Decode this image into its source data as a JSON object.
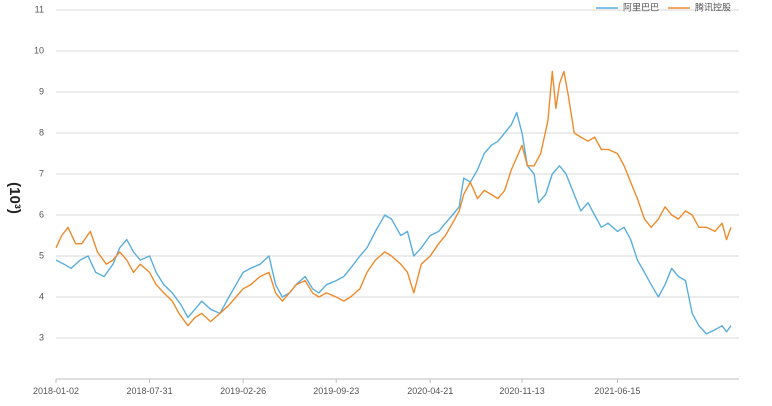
{
  "chart_data": {
    "type": "line",
    "ylabel": "(10³)",
    "ylim": [
      2,
      11
    ],
    "yticks": [
      3,
      4,
      5,
      6,
      7,
      8,
      9,
      10,
      11
    ],
    "xlim": [
      "2018-01-02",
      "2022-03-15"
    ],
    "xticks": [
      "2018-01-02",
      "2018-07-31",
      "2019-02-26",
      "2019-09-23",
      "2020-04-21",
      "2020-11-13",
      "2021-06-15"
    ],
    "grid": "horizontal",
    "legend": "top-right",
    "series": [
      {
        "name": "阿里巴巴",
        "color": "#5aaee0",
        "points": [
          [
            "2018-01-02",
            4.9
          ],
          [
            "2018-01-20",
            4.8
          ],
          [
            "2018-02-05",
            4.7
          ],
          [
            "2018-02-25",
            4.9
          ],
          [
            "2018-03-15",
            5.0
          ],
          [
            "2018-04-01",
            4.6
          ],
          [
            "2018-04-20",
            4.5
          ],
          [
            "2018-05-10",
            4.8
          ],
          [
            "2018-05-25",
            5.2
          ],
          [
            "2018-06-10",
            5.4
          ],
          [
            "2018-06-25",
            5.1
          ],
          [
            "2018-07-10",
            4.9
          ],
          [
            "2018-07-31",
            5.0
          ],
          [
            "2018-08-15",
            4.6
          ],
          [
            "2018-09-01",
            4.3
          ],
          [
            "2018-09-20",
            4.1
          ],
          [
            "2018-10-10",
            3.8
          ],
          [
            "2018-10-25",
            3.5
          ],
          [
            "2018-11-10",
            3.7
          ],
          [
            "2018-11-25",
            3.9
          ],
          [
            "2018-12-15",
            3.7
          ],
          [
            "2019-01-05",
            3.6
          ],
          [
            "2019-01-25",
            4.0
          ],
          [
            "2019-02-10",
            4.3
          ],
          [
            "2019-02-26",
            4.6
          ],
          [
            "2019-03-15",
            4.7
          ],
          [
            "2019-04-05",
            4.8
          ],
          [
            "2019-04-25",
            5.0
          ],
          [
            "2019-05-10",
            4.3
          ],
          [
            "2019-05-25",
            4.0
          ],
          [
            "2019-06-10",
            4.1
          ],
          [
            "2019-06-25",
            4.3
          ],
          [
            "2019-07-15",
            4.5
          ],
          [
            "2019-08-01",
            4.2
          ],
          [
            "2019-08-15",
            4.1
          ],
          [
            "2019-09-01",
            4.3
          ],
          [
            "2019-09-23",
            4.4
          ],
          [
            "2019-10-10",
            4.5
          ],
          [
            "2019-10-25",
            4.7
          ],
          [
            "2019-11-15",
            5.0
          ],
          [
            "2019-12-01",
            5.2
          ],
          [
            "2019-12-20",
            5.6
          ],
          [
            "2020-01-10",
            6.0
          ],
          [
            "2020-01-25",
            5.9
          ],
          [
            "2020-02-15",
            5.5
          ],
          [
            "2020-03-01",
            5.6
          ],
          [
            "2020-03-15",
            5.0
          ],
          [
            "2020-04-01",
            5.2
          ],
          [
            "2020-04-21",
            5.5
          ],
          [
            "2020-05-10",
            5.6
          ],
          [
            "2020-05-25",
            5.8
          ],
          [
            "2020-06-10",
            6.0
          ],
          [
            "2020-06-25",
            6.2
          ],
          [
            "2020-07-05",
            6.9
          ],
          [
            "2020-07-20",
            6.8
          ],
          [
            "2020-08-05",
            7.1
          ],
          [
            "2020-08-20",
            7.5
          ],
          [
            "2020-09-05",
            7.7
          ],
          [
            "2020-09-20",
            7.8
          ],
          [
            "2020-10-05",
            8.0
          ],
          [
            "2020-10-20",
            8.2
          ],
          [
            "2020-11-01",
            8.5
          ],
          [
            "2020-11-13",
            8.0
          ],
          [
            "2020-11-25",
            7.2
          ],
          [
            "2020-12-10",
            7.0
          ],
          [
            "2020-12-20",
            6.3
          ],
          [
            "2021-01-05",
            6.5
          ],
          [
            "2021-01-20",
            7.0
          ],
          [
            "2021-02-05",
            7.2
          ],
          [
            "2021-02-20",
            7.0
          ],
          [
            "2021-03-10",
            6.5
          ],
          [
            "2021-03-25",
            6.1
          ],
          [
            "2021-04-10",
            6.3
          ],
          [
            "2021-04-25",
            6.0
          ],
          [
            "2021-05-10",
            5.7
          ],
          [
            "2021-05-25",
            5.8
          ],
          [
            "2021-06-15",
            5.6
          ],
          [
            "2021-06-30",
            5.7
          ],
          [
            "2021-07-15",
            5.4
          ],
          [
            "2021-07-30",
            4.9
          ],
          [
            "2021-08-15",
            4.6
          ],
          [
            "2021-08-30",
            4.3
          ],
          [
            "2021-09-15",
            4.0
          ],
          [
            "2021-09-30",
            4.3
          ],
          [
            "2021-10-15",
            4.7
          ],
          [
            "2021-10-30",
            4.5
          ],
          [
            "2021-11-15",
            4.4
          ],
          [
            "2021-11-30",
            3.6
          ],
          [
            "2021-12-15",
            3.3
          ],
          [
            "2022-01-01",
            3.1
          ],
          [
            "2022-01-20",
            3.2
          ],
          [
            "2022-02-05",
            3.3
          ],
          [
            "2022-02-15",
            3.15
          ],
          [
            "2022-02-25",
            3.3
          ]
        ]
      },
      {
        "name": "腾讯控股",
        "color": "#ef8b2c",
        "points": [
          [
            "2018-01-02",
            5.2
          ],
          [
            "2018-01-15",
            5.5
          ],
          [
            "2018-01-29",
            5.7
          ],
          [
            "2018-02-15",
            5.3
          ],
          [
            "2018-03-01",
            5.3
          ],
          [
            "2018-03-20",
            5.6
          ],
          [
            "2018-04-05",
            5.1
          ],
          [
            "2018-04-25",
            4.8
          ],
          [
            "2018-05-10",
            4.9
          ],
          [
            "2018-05-25",
            5.1
          ],
          [
            "2018-06-10",
            4.9
          ],
          [
            "2018-06-25",
            4.6
          ],
          [
            "2018-07-10",
            4.8
          ],
          [
            "2018-07-31",
            4.6
          ],
          [
            "2018-08-15",
            4.3
          ],
          [
            "2018-09-01",
            4.1
          ],
          [
            "2018-09-20",
            3.9
          ],
          [
            "2018-10-05",
            3.6
          ],
          [
            "2018-10-25",
            3.3
          ],
          [
            "2018-11-10",
            3.5
          ],
          [
            "2018-11-25",
            3.6
          ],
          [
            "2018-12-15",
            3.4
          ],
          [
            "2019-01-05",
            3.6
          ],
          [
            "2019-01-25",
            3.8
          ],
          [
            "2019-02-10",
            4.0
          ],
          [
            "2019-02-26",
            4.2
          ],
          [
            "2019-03-15",
            4.3
          ],
          [
            "2019-04-05",
            4.5
          ],
          [
            "2019-04-25",
            4.6
          ],
          [
            "2019-05-10",
            4.1
          ],
          [
            "2019-05-25",
            3.9
          ],
          [
            "2019-06-10",
            4.1
          ],
          [
            "2019-06-25",
            4.3
          ],
          [
            "2019-07-15",
            4.4
          ],
          [
            "2019-08-01",
            4.1
          ],
          [
            "2019-08-15",
            4.0
          ],
          [
            "2019-09-01",
            4.1
          ],
          [
            "2019-09-23",
            4.0
          ],
          [
            "2019-10-10",
            3.9
          ],
          [
            "2019-10-25",
            4.0
          ],
          [
            "2019-11-15",
            4.2
          ],
          [
            "2019-12-01",
            4.6
          ],
          [
            "2019-12-20",
            4.9
          ],
          [
            "2020-01-10",
            5.1
          ],
          [
            "2020-01-25",
            5.0
          ],
          [
            "2020-02-15",
            4.8
          ],
          [
            "2020-03-01",
            4.6
          ],
          [
            "2020-03-15",
            4.1
          ],
          [
            "2020-04-01",
            4.8
          ],
          [
            "2020-04-21",
            5.0
          ],
          [
            "2020-05-10",
            5.3
          ],
          [
            "2020-05-25",
            5.5
          ],
          [
            "2020-06-10",
            5.8
          ],
          [
            "2020-06-25",
            6.1
          ],
          [
            "2020-07-05",
            6.5
          ],
          [
            "2020-07-20",
            6.8
          ],
          [
            "2020-08-05",
            6.4
          ],
          [
            "2020-08-20",
            6.6
          ],
          [
            "2020-09-05",
            6.5
          ],
          [
            "2020-09-20",
            6.4
          ],
          [
            "2020-10-05",
            6.6
          ],
          [
            "2020-10-20",
            7.1
          ],
          [
            "2020-11-01",
            7.4
          ],
          [
            "2020-11-13",
            7.7
          ],
          [
            "2020-11-25",
            7.2
          ],
          [
            "2020-12-10",
            7.2
          ],
          [
            "2020-12-25",
            7.5
          ],
          [
            "2021-01-10",
            8.3
          ],
          [
            "2021-01-20",
            9.5
          ],
          [
            "2021-01-28",
            8.6
          ],
          [
            "2021-02-05",
            9.2
          ],
          [
            "2021-02-15",
            9.5
          ],
          [
            "2021-02-25",
            8.9
          ],
          [
            "2021-03-10",
            8.0
          ],
          [
            "2021-03-25",
            7.9
          ],
          [
            "2021-04-10",
            7.8
          ],
          [
            "2021-04-25",
            7.9
          ],
          [
            "2021-05-10",
            7.6
          ],
          [
            "2021-05-25",
            7.6
          ],
          [
            "2021-06-15",
            7.5
          ],
          [
            "2021-06-30",
            7.2
          ],
          [
            "2021-07-15",
            6.8
          ],
          [
            "2021-07-30",
            6.4
          ],
          [
            "2021-08-15",
            5.9
          ],
          [
            "2021-08-30",
            5.7
          ],
          [
            "2021-09-15",
            5.9
          ],
          [
            "2021-09-30",
            6.2
          ],
          [
            "2021-10-15",
            6.0
          ],
          [
            "2021-10-30",
            5.9
          ],
          [
            "2021-11-15",
            6.1
          ],
          [
            "2021-11-30",
            6.0
          ],
          [
            "2021-12-15",
            5.7
          ],
          [
            "2022-01-01",
            5.7
          ],
          [
            "2022-01-20",
            5.6
          ],
          [
            "2022-02-05",
            5.8
          ],
          [
            "2022-02-15",
            5.4
          ],
          [
            "2022-02-25",
            5.7
          ]
        ]
      }
    ]
  }
}
